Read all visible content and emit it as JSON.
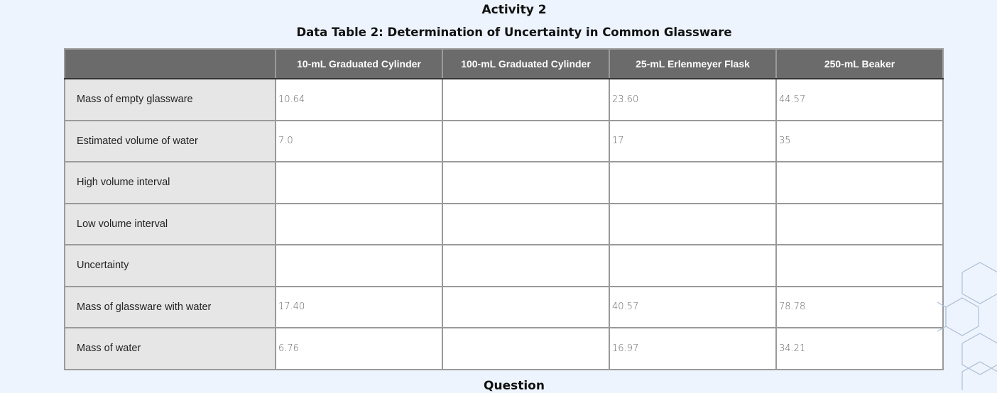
{
  "heading": "Activity 2",
  "table_title": "Data Table 2: Determination of Uncertainty in Common Glassware",
  "columns": [
    "",
    "10-mL Graduated Cylinder",
    "100-mL Graduated Cylinder",
    "25-mL Erlenmeyer Flask",
    "250-mL Beaker"
  ],
  "rows": [
    {
      "label": "Mass of empty glassware",
      "values": [
        "10.64",
        "",
        "23.60",
        "44.57"
      ]
    },
    {
      "label": "Estimated volume of water",
      "values": [
        "7.0",
        "",
        "17",
        "35"
      ]
    },
    {
      "label": "High volume interval",
      "values": [
        "",
        "",
        "",
        ""
      ]
    },
    {
      "label": "Low volume interval",
      "values": [
        "",
        "",
        "",
        ""
      ]
    },
    {
      "label": "Uncertainty",
      "values": [
        "",
        "",
        "",
        ""
      ]
    },
    {
      "label": "Mass of glassware with water",
      "values": [
        "17.40",
        "",
        "40.57",
        "78.78"
      ]
    },
    {
      "label": "Mass of water",
      "values": [
        "6.76",
        "",
        "16.97",
        "34.21"
      ]
    }
  ],
  "next_heading": "Question"
}
